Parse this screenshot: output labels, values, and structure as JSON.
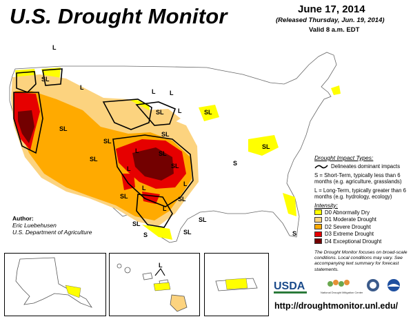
{
  "header": {
    "title": "U.S. Drought Monitor",
    "date": "June 17, 2014",
    "released": "(Released Thursday, Jun. 19, 2014)",
    "valid": "Valid 8 a.m. EDT"
  },
  "legend": {
    "impact_heading": "Drought Impact Types:",
    "impact_line": "Delineates dominant impacts",
    "short_term": "S = Short-Term, typically less than 6 months (e.g. agriculture, grasslands)",
    "long_term": "L = Long-Term, typically greater than 6 months (e.g. hydrology, ecology)",
    "intensity_heading": "Intensity:",
    "categories": [
      {
        "label": "D0 Abnormally Dry",
        "color": "#ffff00"
      },
      {
        "label": "D1 Moderate Drought",
        "color": "#fcd37f"
      },
      {
        "label": "D2 Severe Drought",
        "color": "#ffaa00"
      },
      {
        "label": "D3 Extreme Drought",
        "color": "#e60000"
      },
      {
        "label": "D4 Exceptional Drought",
        "color": "#730000"
      }
    ]
  },
  "author": {
    "label": "Author:",
    "name": "Eric Luebehusen",
    "org": "U.S. Department of Agriculture"
  },
  "map_labels": {
    "L": "L",
    "SL": "SL",
    "S": "S"
  },
  "footnote": "The Drought Monitor focuses on broad-scale conditions. Local conditions may vary. See accompanying text summary for forecast statements.",
  "logos": {
    "usda": "USDA",
    "ndmc": "National Drought Mitigation Center"
  },
  "url": "http://droughtmonitor.unl.edu/"
}
